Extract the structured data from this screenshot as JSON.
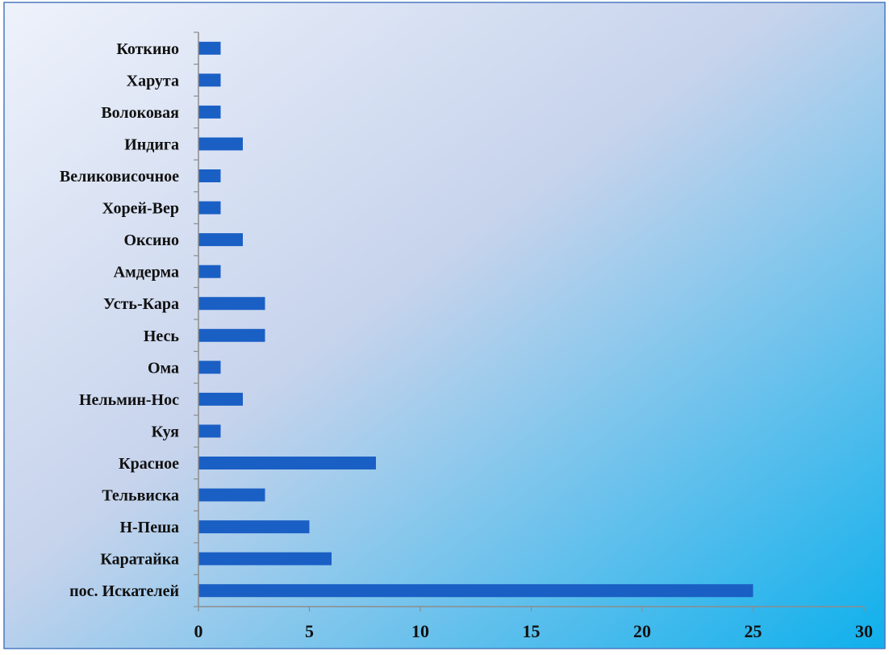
{
  "chart_data": {
    "type": "bar",
    "orientation": "horizontal",
    "categories": [
      "пос. Искателей",
      "Каратайка",
      "Н-Пеша",
      "Тельвиска",
      "Красное",
      "Куя",
      "Нельмин-Нос",
      "Ома",
      "Несь",
      "Усть-Кара",
      "Амдерма",
      "Оксино",
      "Хорей-Вер",
      "Великовисочное",
      "Индига",
      "Волоковая",
      "Харута",
      "Коткино"
    ],
    "values": [
      25,
      6,
      5,
      3,
      8,
      1,
      2,
      1,
      3,
      3,
      1,
      2,
      1,
      1,
      2,
      1,
      1,
      1
    ],
    "xlim": [
      0,
      30
    ],
    "xticks": [
      0,
      5,
      10,
      15,
      20,
      25,
      30
    ],
    "title": "",
    "xlabel": "",
    "ylabel": "",
    "grid": false,
    "legend": "none",
    "colors": {
      "bar": "#1a5fc4",
      "axis": "#8c8c8c",
      "border": "#4a78c0",
      "bg_start": "#eef2fb",
      "bg_mid": "#c6d3ec",
      "bg_end": "#0fb0ec"
    }
  }
}
